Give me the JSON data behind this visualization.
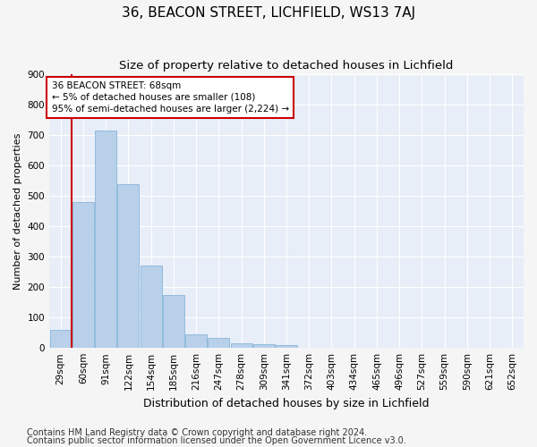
{
  "title": "36, BEACON STREET, LICHFIELD, WS13 7AJ",
  "subtitle": "Size of property relative to detached houses in Lichfield",
  "xlabel": "Distribution of detached houses by size in Lichfield",
  "ylabel": "Number of detached properties",
  "categories": [
    "29sqm",
    "60sqm",
    "91sqm",
    "122sqm",
    "154sqm",
    "185sqm",
    "216sqm",
    "247sqm",
    "278sqm",
    "309sqm",
    "341sqm",
    "372sqm",
    "403sqm",
    "434sqm",
    "465sqm",
    "496sqm",
    "527sqm",
    "559sqm",
    "590sqm",
    "621sqm",
    "652sqm"
  ],
  "values": [
    60,
    480,
    715,
    540,
    270,
    175,
    45,
    32,
    16,
    13,
    9,
    0,
    0,
    0,
    0,
    0,
    0,
    0,
    0,
    0,
    0
  ],
  "bar_color": "#b8d0ea",
  "bar_edge_color": "#7aadd4",
  "highlight_line_color": "#cc0000",
  "annotation_text": "36 BEACON STREET: 68sqm\n← 5% of detached houses are smaller (108)\n95% of semi-detached houses are larger (2,224) →",
  "annotation_box_color": "#ffffff",
  "annotation_box_edge_color": "#cc0000",
  "ylim": [
    0,
    900
  ],
  "yticks": [
    0,
    100,
    200,
    300,
    400,
    500,
    600,
    700,
    800,
    900
  ],
  "footer_line1": "Contains HM Land Registry data © Crown copyright and database right 2024.",
  "footer_line2": "Contains public sector information licensed under the Open Government Licence v3.0.",
  "fig_bg_color": "#f5f5f5",
  "plot_bg_color": "#e8eef8",
  "grid_color": "#ffffff",
  "title_fontsize": 11,
  "subtitle_fontsize": 9.5,
  "xlabel_fontsize": 9,
  "ylabel_fontsize": 8,
  "tick_fontsize": 7.5,
  "footer_fontsize": 7,
  "annotation_fontsize": 7.5
}
